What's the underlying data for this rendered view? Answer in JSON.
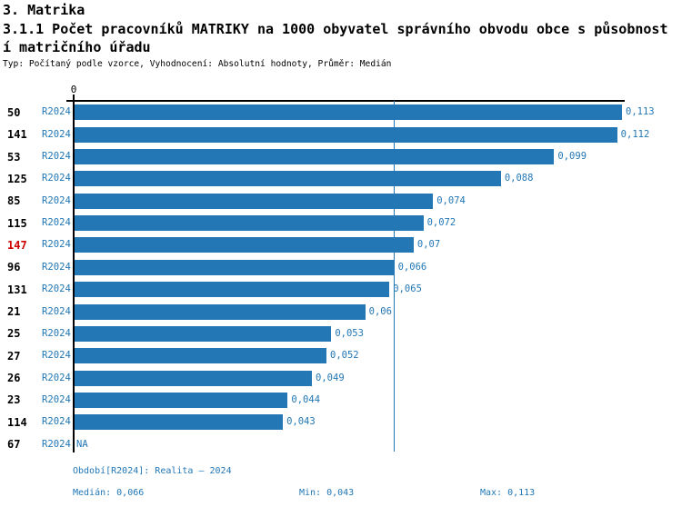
{
  "header": {
    "section_title": "3. Matrika",
    "title_line1": "3.1.1 Počet pracovníků MATRIKY na 1000 obyvatel správního obvodu obce s působnost",
    "title_line2": "í matričního úřadu",
    "meta": "Typ: Počítaný podle vzorce, Vyhodnocení: Absolutní hodnoty, Průměr: Medián"
  },
  "chart_data": {
    "type": "bar",
    "orientation": "horizontal",
    "title": "3.1.1 Počet pracovníků MATRIKY na 1000 obyvatel správního obvodu obce s působností matričního úřadu",
    "value_axis": {
      "origin_label": "0",
      "max_value": 0.113
    },
    "median_value": 0.066,
    "grid": false,
    "rows": [
      {
        "id": "50",
        "period": "R2024",
        "value": 0.113,
        "value_label": "0,113",
        "highlighted": false
      },
      {
        "id": "141",
        "period": "R2024",
        "value": 0.112,
        "value_label": "0,112",
        "highlighted": false
      },
      {
        "id": "53",
        "period": "R2024",
        "value": 0.099,
        "value_label": "0,099",
        "highlighted": false
      },
      {
        "id": "125",
        "period": "R2024",
        "value": 0.088,
        "value_label": "0,088",
        "highlighted": false
      },
      {
        "id": "85",
        "period": "R2024",
        "value": 0.074,
        "value_label": "0,074",
        "highlighted": false
      },
      {
        "id": "115",
        "period": "R2024",
        "value": 0.072,
        "value_label": "0,072",
        "highlighted": false
      },
      {
        "id": "147",
        "period": "R2024",
        "value": 0.07,
        "value_label": "0,07",
        "highlighted": true
      },
      {
        "id": "96",
        "period": "R2024",
        "value": 0.066,
        "value_label": "0,066",
        "highlighted": false
      },
      {
        "id": "131",
        "period": "R2024",
        "value": 0.065,
        "value_label": "0,065",
        "highlighted": false
      },
      {
        "id": "21",
        "period": "R2024",
        "value": 0.06,
        "value_label": "0,06",
        "highlighted": false
      },
      {
        "id": "25",
        "period": "R2024",
        "value": 0.053,
        "value_label": "0,053",
        "highlighted": false
      },
      {
        "id": "27",
        "period": "R2024",
        "value": 0.052,
        "value_label": "0,052",
        "highlighted": false
      },
      {
        "id": "26",
        "period": "R2024",
        "value": 0.049,
        "value_label": "0,049",
        "highlighted": false
      },
      {
        "id": "23",
        "period": "R2024",
        "value": 0.044,
        "value_label": "0,044",
        "highlighted": false
      },
      {
        "id": "114",
        "period": "R2024",
        "value": 0.043,
        "value_label": "0,043",
        "highlighted": false
      },
      {
        "id": "67",
        "period": "R2024",
        "value": null,
        "value_label": "NA",
        "highlighted": false
      }
    ],
    "colors": {
      "bar": "#2377B5",
      "blue_text": "#2277B5",
      "highlight_text": "#CC0000",
      "axis": "#000000",
      "median_line": "#2277B5"
    }
  },
  "footer": {
    "period_info": "Období[R2024]: Realita – 2024",
    "median": "Medián: 0,066",
    "min": "Min: 0,043",
    "max": "Max: 0,113"
  }
}
